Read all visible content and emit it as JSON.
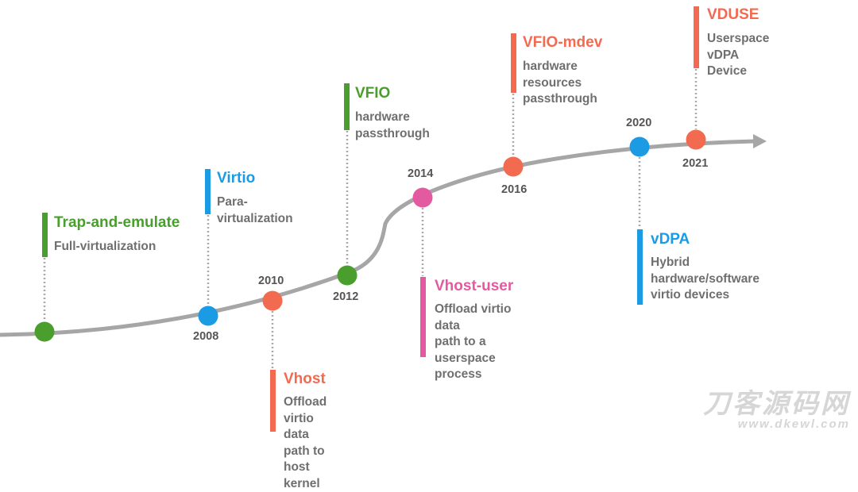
{
  "colors": {
    "green": "#4a9e2e",
    "blue": "#1a9be3",
    "orange": "#f26a50",
    "pink": "#e45aa0",
    "line": "#a6a6a6",
    "dotted": "#a9a9a9"
  },
  "milestones": [
    {
      "id": "trap",
      "year": "",
      "color": "#4a9e2e",
      "title": "Trap-and-emulate",
      "desc": "Full-virtualization"
    },
    {
      "id": "virtio",
      "year": "2008",
      "color": "#1a9be3",
      "title": "Virtio",
      "desc": "Para-virtualization"
    },
    {
      "id": "vhost",
      "year": "2010",
      "color": "#f26a50",
      "title": "Vhost",
      "desc": "Offload virtio data\npath to host kernel"
    },
    {
      "id": "vfio",
      "year": "2012",
      "color": "#4a9e2e",
      "title": "VFIO",
      "desc": "hardware passthrough"
    },
    {
      "id": "vhost-user",
      "year": "2014",
      "color": "#e45aa0",
      "title": "Vhost-user",
      "desc": "Offload virtio data\npath to a userspace\nprocess"
    },
    {
      "id": "vfio-mdev",
      "year": "2016",
      "color": "#f26a50",
      "title": "VFIO-mdev",
      "desc": "hardware resources\npassthrough"
    },
    {
      "id": "vdpa",
      "year": "2020",
      "color": "#1a9be3",
      "title": "vDPA",
      "desc": "Hybrid\nhardware/software\nvirtio devices"
    },
    {
      "id": "vduse",
      "year": "2021",
      "color": "#f26a50",
      "title": "VDUSE",
      "desc": "Userspace vDPA\nDevice"
    }
  ],
  "watermark": {
    "chars": "刀客源码网",
    "url": "www.dkewl.com"
  }
}
